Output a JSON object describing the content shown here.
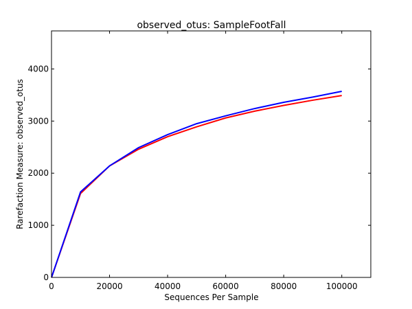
{
  "chart_data": {
    "type": "line",
    "title": "observed_otus: SampleFootFall",
    "xlabel": "Sequences Per Sample",
    "ylabel": "Rarefaction Measure: observed_otus",
    "xlim": [
      0,
      110000
    ],
    "ylim": [
      0,
      4730
    ],
    "xticks": [
      0,
      20000,
      40000,
      60000,
      80000,
      100000
    ],
    "yticks": [
      0,
      1000,
      2000,
      3000,
      4000
    ],
    "grid": false,
    "legend": "none",
    "series": [
      {
        "color": "#ff0000",
        "x": [
          10,
          10000,
          20000,
          30000,
          40000,
          50000,
          60000,
          70000,
          80000,
          90000,
          100000
        ],
        "y": [
          0,
          1610,
          2140,
          2460,
          2700,
          2890,
          3060,
          3190,
          3300,
          3400,
          3490
        ]
      },
      {
        "color": "#0000ff",
        "x": [
          10,
          10000,
          20000,
          30000,
          40000,
          50000,
          60000,
          70000,
          80000,
          90000,
          100000
        ],
        "y": [
          0,
          1640,
          2140,
          2490,
          2740,
          2950,
          3100,
          3240,
          3360,
          3460,
          3570
        ]
      }
    ]
  }
}
